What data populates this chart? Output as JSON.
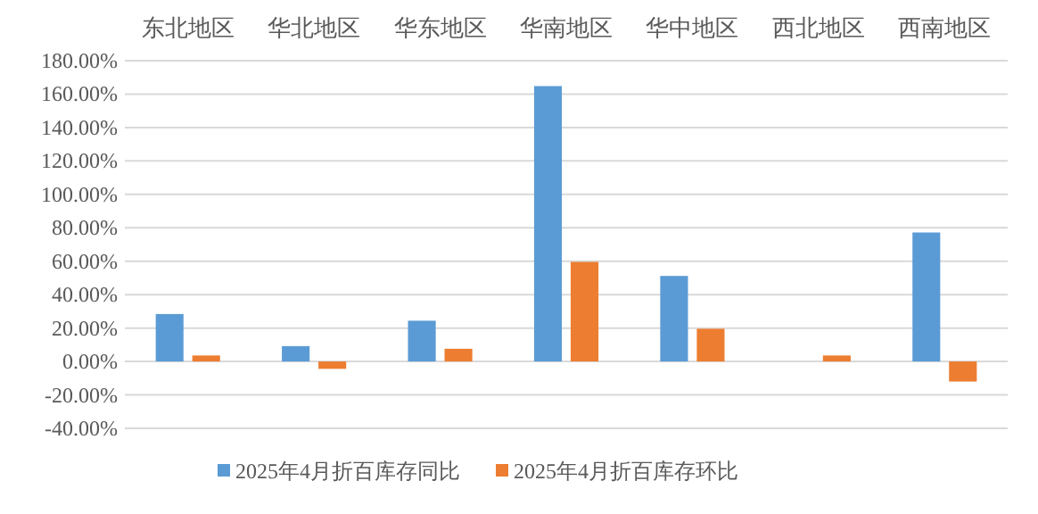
{
  "chart_data": {
    "type": "bar",
    "categories": [
      "东北地区",
      "华北地区",
      "华东地区",
      "华南地区",
      "华中地区",
      "西北地区",
      "西南地区"
    ],
    "series": [
      {
        "name": "2025年4月折百库存同比",
        "color": "#5b9bd5",
        "values": [
          28.4,
          9.2,
          24.4,
          164.8,
          51.2,
          0,
          77.2
        ]
      },
      {
        "name": "2025年4月折百库存环比",
        "color": "#ed7d31",
        "values": [
          3.6,
          -4.4,
          7.6,
          59.6,
          19.6,
          3.6,
          -12
        ]
      }
    ],
    "ylim": [
      -40,
      180
    ],
    "yticks": [
      {
        "value": -40,
        "label": "-40.00%"
      },
      {
        "value": -20,
        "label": "-20.00%"
      },
      {
        "value": 0,
        "label": "0.00%"
      },
      {
        "value": 20,
        "label": "20.00%"
      },
      {
        "value": 40,
        "label": "40.00%"
      },
      {
        "value": 60,
        "label": "60.00%"
      },
      {
        "value": 80,
        "label": "80.00%"
      },
      {
        "value": 100,
        "label": "100.00%"
      },
      {
        "value": 120,
        "label": "120.00%"
      },
      {
        "value": 140,
        "label": "140.00%"
      },
      {
        "value": 160,
        "label": "160.00%"
      },
      {
        "value": 180,
        "label": "180.00%"
      }
    ],
    "grid": "y",
    "legend": "bottom"
  }
}
